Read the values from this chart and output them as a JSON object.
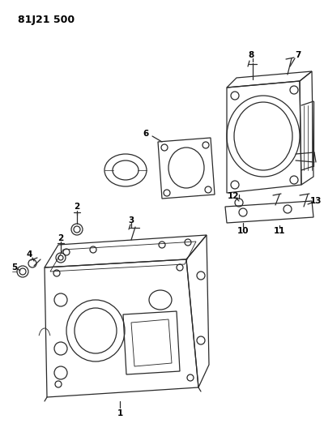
{
  "title": "81J21 500",
  "bg_color": "#ffffff",
  "line_color": "#2a2a2a",
  "label_color": "#000000",
  "title_fontsize": 9,
  "label_fontsize": 7.5,
  "fig_width": 4.0,
  "fig_height": 5.33,
  "dpi": 100
}
